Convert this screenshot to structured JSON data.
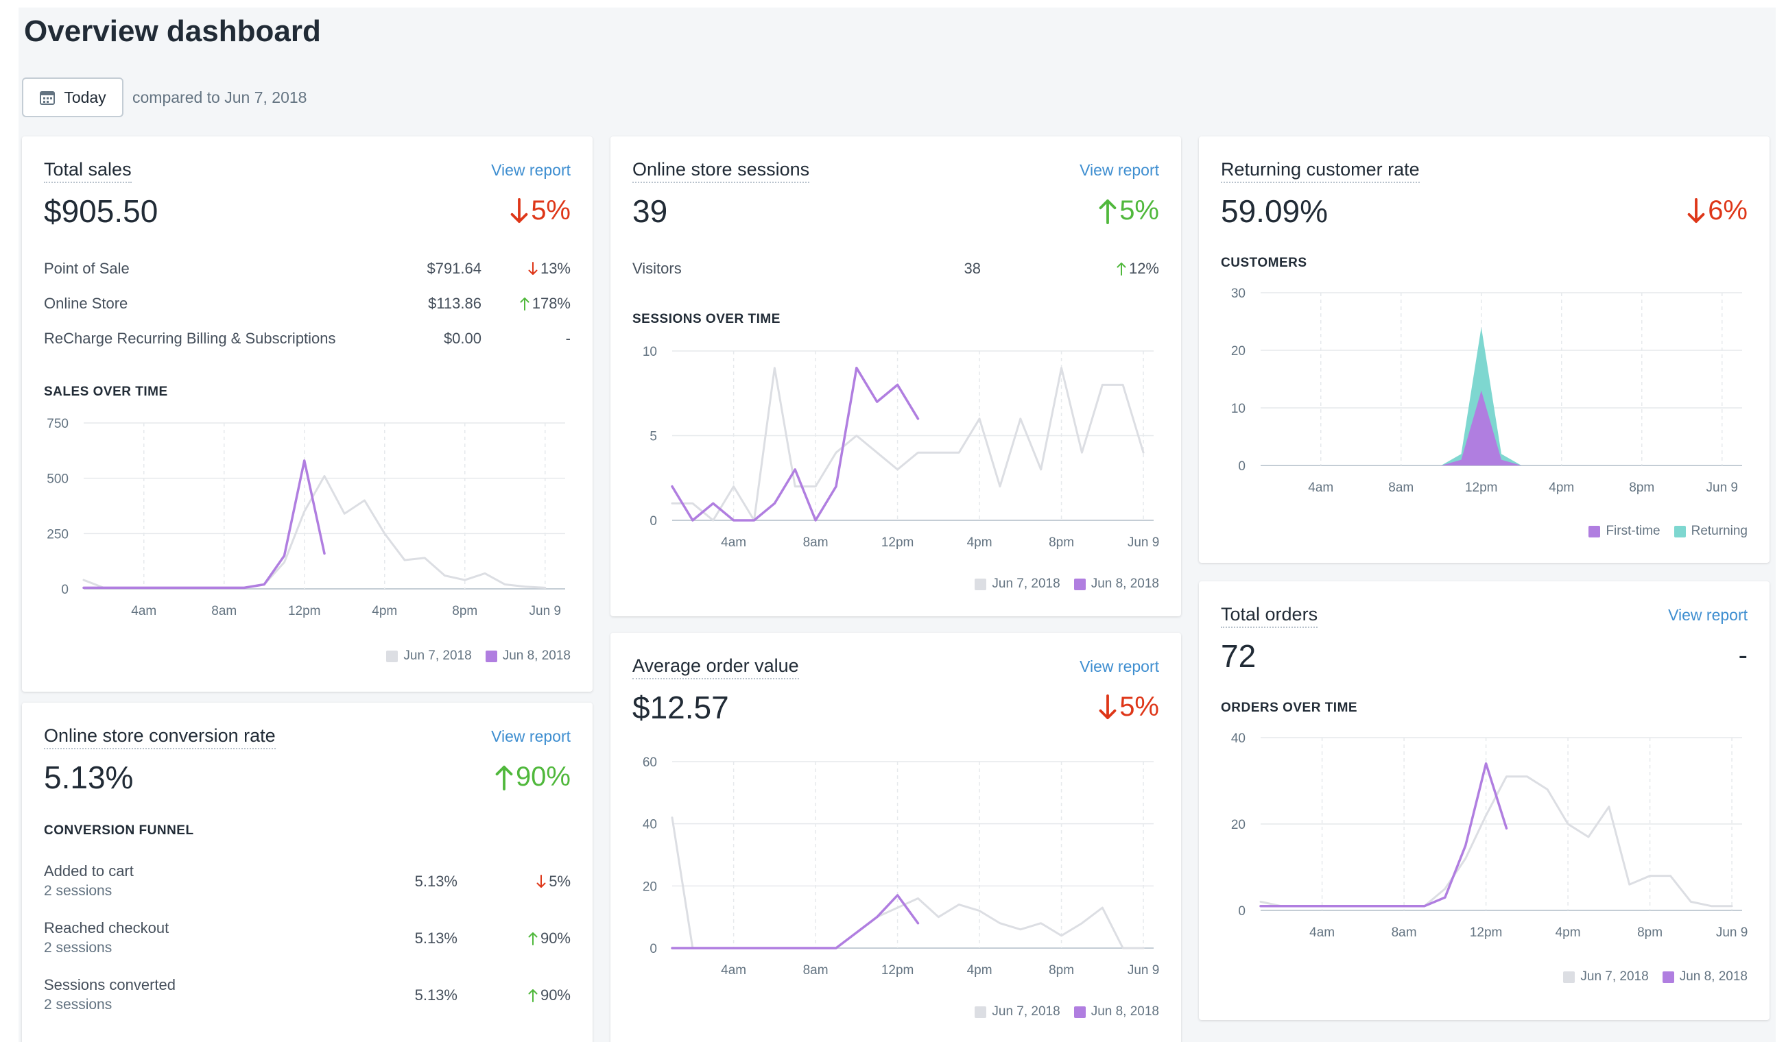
{
  "header": {
    "title": "Overview dashboard",
    "date_button": "Today",
    "compare_text": "compared to Jun 7, 2018"
  },
  "colors": {
    "current": "#b07ee0",
    "previous": "#dcdee3",
    "first_time": "#b07ee0",
    "returning": "#7ed7d0",
    "down": "#de3618",
    "up": "#50b83c",
    "link": "#3e8ed0"
  },
  "cards": {
    "total_sales": {
      "title": "Total sales",
      "view_report": "View report",
      "value": "$905.50",
      "change": "5%",
      "change_direction": "down",
      "rows": [
        {
          "label": "Point of Sale",
          "value": "$791.64",
          "change": "13%",
          "direction": "down"
        },
        {
          "label": "Online Store",
          "value": "$113.86",
          "change": "178%",
          "direction": "up"
        },
        {
          "label": "ReCharge Recurring Billing & Subscriptions",
          "value": "$0.00",
          "change": "-",
          "direction": "none"
        }
      ],
      "section_label": "SALES OVER TIME"
    },
    "sessions": {
      "title": "Online store sessions",
      "view_report": "View report",
      "value": "39",
      "change": "5%",
      "change_direction": "up",
      "rows": [
        {
          "label": "Visitors",
          "value": "38",
          "change": "12%",
          "direction": "up"
        }
      ],
      "section_label": "SESSIONS OVER TIME"
    },
    "returning": {
      "title": "Returning customer rate",
      "value": "59.09%",
      "change": "6%",
      "change_direction": "down",
      "section_label": "CUSTOMERS"
    },
    "conversion": {
      "title": "Online store conversion rate",
      "view_report": "View report",
      "value": "5.13%",
      "change": "90%",
      "change_direction": "up",
      "section_label": "CONVERSION FUNNEL",
      "rows": [
        {
          "label": "Added to cart",
          "sub": "2 sessions",
          "value": "5.13%",
          "change": "5%",
          "direction": "down"
        },
        {
          "label": "Reached checkout",
          "sub": "2 sessions",
          "value": "5.13%",
          "change": "90%",
          "direction": "up"
        },
        {
          "label": "Sessions converted",
          "sub": "2 sessions",
          "value": "5.13%",
          "change": "90%",
          "direction": "up"
        }
      ]
    },
    "aov": {
      "title": "Average order value",
      "view_report": "View report",
      "value": "$12.57",
      "change": "5%",
      "change_direction": "down"
    },
    "orders": {
      "title": "Total orders",
      "view_report": "View report",
      "value": "72",
      "change": "-",
      "change_direction": "none",
      "section_label": "ORDERS OVER TIME"
    }
  },
  "chart_data": [
    {
      "id": "sales",
      "type": "line",
      "ylim": [
        0,
        750
      ],
      "yticks": [
        "0",
        "250",
        "500",
        "750"
      ],
      "ytick_values": [
        0,
        250,
        500,
        750
      ],
      "x_range": [
        0,
        24
      ],
      "xticks": [
        "4am",
        "8am",
        "12pm",
        "4pm",
        "8pm",
        "Jun 9"
      ],
      "xtick_values": [
        3,
        7,
        11,
        15,
        19,
        23
      ],
      "series": [
        {
          "name": "Jun 7, 2018",
          "x": [
            0,
            1,
            2,
            3,
            4,
            5,
            6,
            7,
            8,
            9,
            10,
            11,
            12,
            13,
            14,
            15,
            16,
            17,
            18,
            19,
            20,
            21,
            22,
            23
          ],
          "values": [
            40,
            5,
            5,
            5,
            5,
            5,
            5,
            5,
            5,
            20,
            120,
            350,
            510,
            340,
            400,
            250,
            130,
            140,
            60,
            40,
            70,
            20,
            10,
            5
          ]
        },
        {
          "name": "Jun 8, 2018",
          "x": [
            0,
            1,
            2,
            3,
            4,
            5,
            6,
            7,
            8,
            9,
            10,
            11,
            12
          ],
          "values": [
            5,
            5,
            5,
            5,
            5,
            5,
            5,
            5,
            5,
            20,
            150,
            580,
            160
          ]
        }
      ]
    },
    {
      "id": "sessions",
      "type": "line",
      "ylim": [
        0,
        10
      ],
      "yticks": [
        "0",
        "5",
        "10"
      ],
      "ytick_values": [
        0,
        5,
        10
      ],
      "x_range": [
        0,
        23.5
      ],
      "xticks": [
        "4am",
        "8am",
        "12pm",
        "4pm",
        "8pm",
        "Jun 9"
      ],
      "xtick_values": [
        3,
        7,
        11,
        15,
        19,
        23
      ],
      "series": [
        {
          "name": "Jun 7, 2018",
          "x": [
            0,
            1,
            2,
            3,
            4,
            5,
            6,
            7,
            8,
            9,
            10,
            11,
            12,
            13,
            14,
            15,
            16,
            17,
            18,
            19,
            20,
            21,
            22,
            23
          ],
          "values": [
            1,
            1,
            0,
            2,
            0,
            9,
            2,
            2,
            4,
            5,
            4,
            3,
            4,
            4,
            4,
            6,
            2,
            6,
            3,
            9,
            4,
            8,
            8,
            4
          ]
        },
        {
          "name": "Jun 8, 2018",
          "x": [
            0,
            1,
            2,
            3,
            4,
            5,
            6,
            7,
            8,
            9,
            10,
            11,
            12
          ],
          "values": [
            2,
            0,
            1,
            0,
            0,
            1,
            3,
            0,
            2,
            9,
            7,
            8,
            6
          ]
        }
      ]
    },
    {
      "id": "customers",
      "type": "area",
      "ylim": [
        0,
        30
      ],
      "yticks": [
        "0",
        "10",
        "20",
        "30"
      ],
      "ytick_values": [
        0,
        10,
        20,
        30
      ],
      "x_range": [
        0,
        24
      ],
      "xticks": [
        "4am",
        "8am",
        "12pm",
        "4pm",
        "8pm",
        "Jun 9"
      ],
      "xtick_values": [
        3,
        7,
        11,
        15,
        19,
        23
      ],
      "series": [
        {
          "name": "Returning",
          "x": [
            0,
            8,
            9,
            10,
            11,
            12,
            13,
            24
          ],
          "values": [
            0,
            0,
            0,
            2,
            24,
            2,
            0,
            0
          ]
        },
        {
          "name": "First-time",
          "x": [
            0,
            8,
            9,
            10,
            11,
            12,
            13,
            24
          ],
          "values": [
            0,
            0,
            0,
            1,
            13,
            1,
            0,
            0
          ]
        }
      ]
    },
    {
      "id": "aov",
      "type": "line",
      "ylim": [
        0,
        60
      ],
      "yticks": [
        "0",
        "20",
        "40",
        "60"
      ],
      "ytick_values": [
        0,
        20,
        40,
        60
      ],
      "x_range": [
        0,
        23.5
      ],
      "xticks": [
        "4am",
        "8am",
        "12pm",
        "4pm",
        "8pm",
        "Jun 9"
      ],
      "xtick_values": [
        3,
        7,
        11,
        15,
        19,
        23
      ],
      "series": [
        {
          "name": "Jun 7, 2018",
          "x": [
            0,
            1,
            2,
            3,
            4,
            5,
            6,
            7,
            8,
            9,
            10,
            11,
            12,
            13,
            14,
            15,
            16,
            17,
            18,
            19,
            20,
            21,
            22,
            23
          ],
          "values": [
            42,
            0,
            0,
            0,
            0,
            0,
            0,
            0,
            0,
            5,
            10,
            13,
            16,
            10,
            14,
            12,
            8,
            6,
            8,
            4,
            8,
            13,
            0,
            0
          ]
        },
        {
          "name": "Jun 8, 2018",
          "x": [
            0,
            1,
            2,
            3,
            4,
            5,
            6,
            7,
            8,
            9,
            10,
            11,
            12
          ],
          "values": [
            0,
            0,
            0,
            0,
            0,
            0,
            0,
            0,
            0,
            5,
            10,
            17,
            8
          ]
        }
      ]
    },
    {
      "id": "orders",
      "type": "line",
      "ylim": [
        0,
        40
      ],
      "yticks": [
        "0",
        "20",
        "40"
      ],
      "ytick_values": [
        0,
        20,
        40
      ],
      "x_range": [
        0,
        23.5
      ],
      "xticks": [
        "4am",
        "8am",
        "12pm",
        "4pm",
        "8pm",
        "Jun 9"
      ],
      "xtick_values": [
        3,
        7,
        11,
        15,
        19,
        23
      ],
      "series": [
        {
          "name": "Jun 7, 2018",
          "x": [
            0,
            1,
            2,
            3,
            4,
            5,
            6,
            7,
            8,
            9,
            10,
            11,
            12,
            13,
            14,
            15,
            16,
            17,
            18,
            19,
            20,
            21,
            22,
            23
          ],
          "values": [
            2,
            1,
            1,
            1,
            1,
            1,
            1,
            1,
            1,
            5,
            12,
            22,
            31,
            31,
            28,
            20,
            17,
            24,
            6,
            8,
            8,
            2,
            1,
            1
          ]
        },
        {
          "name": "Jun 8, 2018",
          "x": [
            0,
            1,
            2,
            3,
            4,
            5,
            6,
            7,
            8,
            9,
            10,
            11,
            12
          ],
          "values": [
            1,
            1,
            1,
            1,
            1,
            1,
            1,
            1,
            1,
            3,
            15,
            34,
            19
          ]
        }
      ]
    }
  ]
}
